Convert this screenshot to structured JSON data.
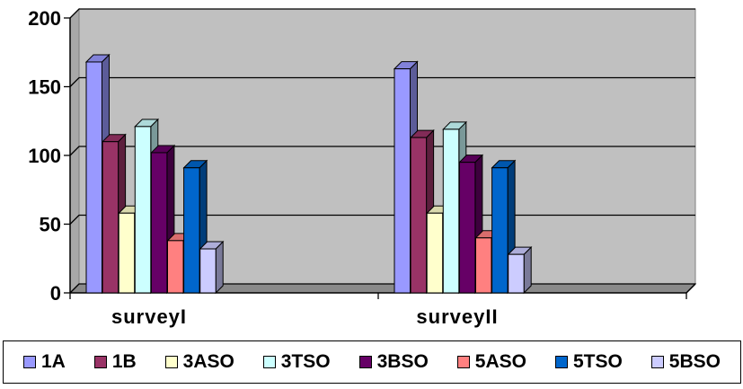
{
  "chart_data": {
    "type": "bar",
    "categories": [
      "surveyI",
      "surveyII"
    ],
    "series": [
      {
        "name": "1A",
        "values": [
          168,
          163
        ],
        "color": "#9999ff"
      },
      {
        "name": "1B",
        "values": [
          110,
          113
        ],
        "color": "#993366"
      },
      {
        "name": "3ASO",
        "values": [
          58,
          58
        ],
        "color": "#ffffcc"
      },
      {
        "name": "3TSO",
        "values": [
          121,
          119
        ],
        "color": "#ccffff"
      },
      {
        "name": "3BSO",
        "values": [
          102,
          95
        ],
        "color": "#660066"
      },
      {
        "name": "5ASO",
        "values": [
          38,
          40
        ],
        "color": "#ff8080"
      },
      {
        "name": "5TSO",
        "values": [
          91,
          91
        ],
        "color": "#0066cc"
      },
      {
        "name": "5BSO",
        "values": [
          32,
          28
        ],
        "color": "#ccccff"
      }
    ],
    "yticks": [
      "0",
      "50",
      "100",
      "150",
      "200"
    ],
    "ylim": [
      0,
      200
    ],
    "grid": true,
    "background": "#c0c0c0",
    "legend_position": "bottom",
    "title": "",
    "xlabel": "",
    "ylabel": ""
  }
}
